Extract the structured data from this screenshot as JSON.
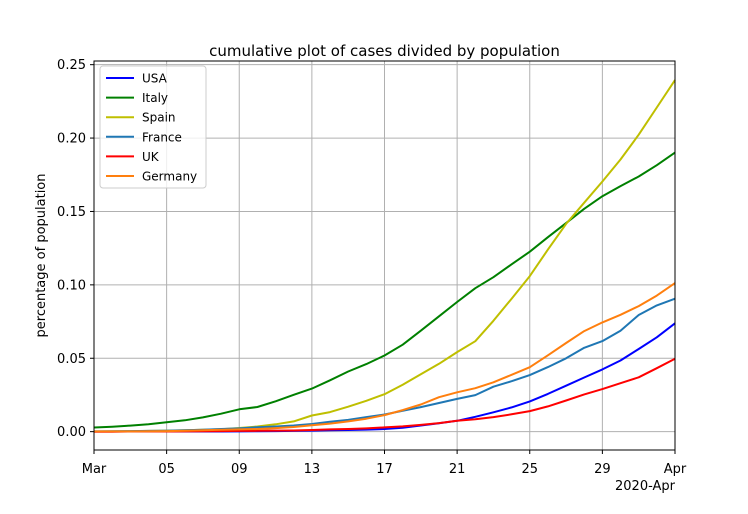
{
  "chart_data": {
    "type": "line",
    "title": "cumulative plot of cases divided by population",
    "xlabel": "",
    "ylabel": "percentage of population",
    "x_tick_labels": [
      "Mar",
      "05",
      "09",
      "13",
      "17",
      "21",
      "25",
      "29",
      "Apr"
    ],
    "x_offset_label": "2020-Apr",
    "x_start_date": "2020-03-01",
    "x_end_date": "2020-04-02",
    "y_ticks": [
      "0.00",
      "0.05",
      "0.10",
      "0.15",
      "0.20",
      "0.25"
    ],
    "ylim": [
      -0.0125,
      0.2525
    ],
    "grid": true,
    "legend_position": "upper-left",
    "x": [
      "2020-03-01",
      "2020-03-02",
      "2020-03-03",
      "2020-03-04",
      "2020-03-05",
      "2020-03-06",
      "2020-03-07",
      "2020-03-08",
      "2020-03-09",
      "2020-03-10",
      "2020-03-11",
      "2020-03-12",
      "2020-03-13",
      "2020-03-14",
      "2020-03-15",
      "2020-03-16",
      "2020-03-17",
      "2020-03-18",
      "2020-03-19",
      "2020-03-20",
      "2020-03-21",
      "2020-03-22",
      "2020-03-23",
      "2020-03-24",
      "2020-03-25",
      "2020-03-26",
      "2020-03-27",
      "2020-03-28",
      "2020-03-29",
      "2020-03-30",
      "2020-03-31",
      "2020-04-01",
      "2020-04-02"
    ],
    "series": [
      {
        "name": "USA",
        "color": "#0000ff",
        "values": [
          0.0001,
          0.0001,
          0.0001,
          0.0001,
          0.0001,
          0.0001,
          0.0001,
          0.0001,
          0.0002,
          0.0003,
          0.0004,
          0.0005,
          0.0007,
          0.0009,
          0.0011,
          0.0014,
          0.0018,
          0.0027,
          0.0042,
          0.0057,
          0.0074,
          0.0101,
          0.0132,
          0.0165,
          0.0206,
          0.0257,
          0.0313,
          0.0369,
          0.0424,
          0.0485,
          0.0563,
          0.0643,
          0.0738
        ]
      },
      {
        "name": "Italy",
        "color": "#008000",
        "values": [
          0.0028,
          0.0034,
          0.0041,
          0.005,
          0.0064,
          0.0077,
          0.0097,
          0.0122,
          0.0152,
          0.0168,
          0.0207,
          0.0251,
          0.0293,
          0.035,
          0.041,
          0.046,
          0.0519,
          0.0592,
          0.0688,
          0.0786,
          0.0883,
          0.0977,
          0.1052,
          0.114,
          0.1226,
          0.1325,
          0.1421,
          0.1518,
          0.1604,
          0.1673,
          0.1738,
          0.1815,
          0.1901
        ]
      },
      {
        "name": "Spain",
        "color": "#bfbf00",
        "values": [
          0.0001,
          0.0002,
          0.0003,
          0.0005,
          0.0007,
          0.001,
          0.0013,
          0.0017,
          0.0025,
          0.0035,
          0.005,
          0.007,
          0.011,
          0.0133,
          0.017,
          0.021,
          0.0255,
          0.032,
          0.0391,
          0.0462,
          0.0542,
          0.0616,
          0.0755,
          0.0906,
          0.106,
          0.124,
          0.1415,
          0.156,
          0.1704,
          0.1854,
          0.2023,
          0.2208,
          0.2395
        ]
      },
      {
        "name": "France",
        "color": "#1f77b4",
        "values": [
          0.0002,
          0.0003,
          0.0004,
          0.0005,
          0.0006,
          0.0009,
          0.0013,
          0.0018,
          0.0022,
          0.003,
          0.0035,
          0.0042,
          0.0052,
          0.0067,
          0.008,
          0.0099,
          0.0117,
          0.0142,
          0.0167,
          0.0195,
          0.0223,
          0.0249,
          0.0306,
          0.0344,
          0.0385,
          0.044,
          0.05,
          0.0571,
          0.0617,
          0.0688,
          0.0795,
          0.086,
          0.0906
        ]
      },
      {
        "name": "UK",
        "color": "#ff0000",
        "values": [
          0.0,
          0.0,
          0.0001,
          0.0001,
          0.0001,
          0.0002,
          0.0003,
          0.0004,
          0.0005,
          0.0006,
          0.0007,
          0.0008,
          0.0011,
          0.0015,
          0.0018,
          0.0022,
          0.0029,
          0.0036,
          0.0046,
          0.0058,
          0.0074,
          0.0084,
          0.0099,
          0.0118,
          0.014,
          0.0172,
          0.0212,
          0.0254,
          0.029,
          0.033,
          0.037,
          0.0432,
          0.0497
        ]
      },
      {
        "name": "Germany",
        "color": "#ff7f0e",
        "values": [
          0.0002,
          0.0002,
          0.0002,
          0.0003,
          0.0004,
          0.0006,
          0.001,
          0.0013,
          0.0015,
          0.0018,
          0.0024,
          0.0032,
          0.0043,
          0.0055,
          0.007,
          0.0088,
          0.0113,
          0.0147,
          0.0185,
          0.0235,
          0.0268,
          0.0296,
          0.0336,
          0.0387,
          0.0439,
          0.052,
          0.0604,
          0.0685,
          0.0744,
          0.0796,
          0.0855,
          0.0927,
          0.1012
        ]
      }
    ]
  }
}
